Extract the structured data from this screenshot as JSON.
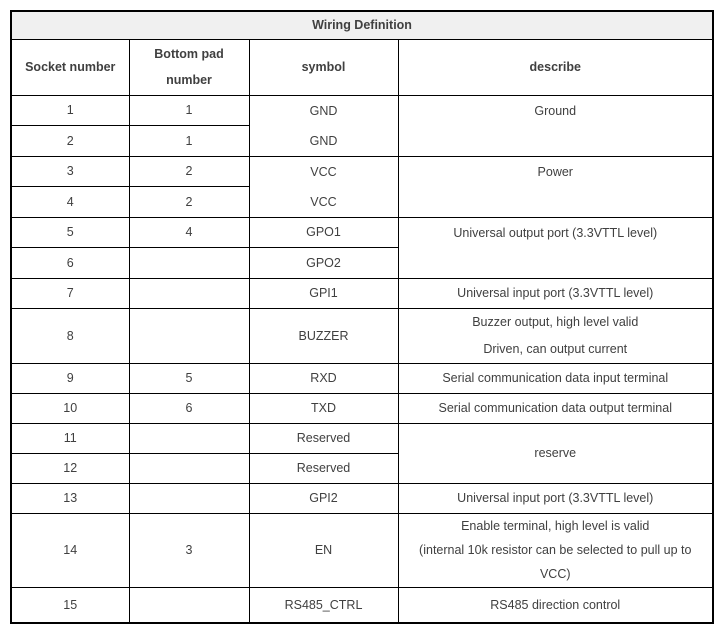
{
  "table": {
    "title": "Wiring Definition",
    "header": {
      "socket": "Socket number",
      "pad_line1": "Bottom pad",
      "pad_line2": "number",
      "symbol": "symbol",
      "describe": "describe"
    },
    "rows": [
      {
        "socket": "1",
        "pad": "1",
        "symbol": "GND",
        "describe": "Ground"
      },
      {
        "socket": "2",
        "pad": "1",
        "symbol": "GND",
        "describe": ""
      },
      {
        "socket": "3",
        "pad": "2",
        "symbol": "VCC",
        "describe": "Power"
      },
      {
        "socket": "4",
        "pad": "2",
        "symbol": "VCC",
        "describe": ""
      },
      {
        "socket": "5",
        "pad": "4",
        "symbol": "GPO1",
        "describe": "Universal output port (3.3VTTL level)"
      },
      {
        "socket": "6",
        "pad": "",
        "symbol": "GPO2",
        "describe": ""
      },
      {
        "socket": "7",
        "pad": "",
        "symbol": "GPI1",
        "describe": "Universal input port (3.3VTTL level)"
      },
      {
        "socket": "8",
        "pad": "",
        "symbol": "BUZZER",
        "describe_line1": "Buzzer output, high level valid",
        "describe_line2": "Driven, can output current"
      },
      {
        "socket": "9",
        "pad": "5",
        "symbol": "RXD",
        "describe": "Serial communication data input terminal"
      },
      {
        "socket": "10",
        "pad": "6",
        "symbol": "TXD",
        "describe": "Serial communication data output terminal"
      },
      {
        "socket": "11",
        "pad": "",
        "symbol": "Reserved",
        "describe": "reserve"
      },
      {
        "socket": "12",
        "pad": "",
        "symbol": "Reserved",
        "describe": ""
      },
      {
        "socket": "13",
        "pad": "",
        "symbol": "GPI2",
        "describe": "Universal input port (3.3VTTL level)"
      },
      {
        "socket": "14",
        "pad": "3",
        "symbol": "EN",
        "describe_line1": "Enable terminal, high level is valid",
        "describe_line2": "(internal 10k resistor can be selected to pull up to",
        "describe_line3": "VCC)"
      },
      {
        "socket": "15",
        "pad": "",
        "symbol": "RS485_CTRL",
        "describe": "RS485 direction control"
      }
    ],
    "colors": {
      "title_text": "#1464ac",
      "title_bg": "#f0f0f0",
      "body_text": "#404040",
      "header_text": "#262626",
      "border": "#000000"
    }
  }
}
